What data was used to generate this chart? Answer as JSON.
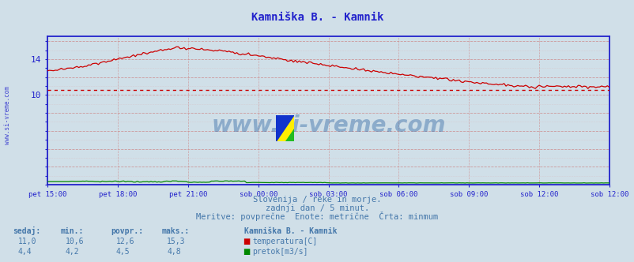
{
  "title": "Kamniška B. - Kamnik",
  "background_color": "#d0dfe8",
  "plot_bg_color": "#d0dfe8",
  "x_labels": [
    "pet 15:00",
    "pet 18:00",
    "pet 21:00",
    "sob 00:00",
    "sob 03:00",
    "sob 06:00",
    "sob 09:00",
    "sob 12:00"
  ],
  "y_ticks_show": [
    10,
    14
  ],
  "y_min": 0,
  "y_max": 16.5,
  "temp_min_line": 10.6,
  "subtitle1": "Slovenija / reke in morje.",
  "subtitle2": "zadnji dan / 5 minut.",
  "subtitle3": "Meritve: povprečne  Enote: metrične  Črta: minmum",
  "legend_title": "Kamniška B. - Kamnik",
  "legend_items": [
    "temperatura[C]",
    "pretok[m3/s]"
  ],
  "legend_colors": [
    "#cc0000",
    "#008800"
  ],
  "stats_headers": [
    "sedaj:",
    "min.:",
    "povpr.:",
    "maks.:"
  ],
  "stats_temp": [
    "11,0",
    "10,6",
    "12,6",
    "15,3"
  ],
  "stats_flow": [
    "4,4",
    "4,2",
    "4,5",
    "4,8"
  ],
  "grid_color_major": "#cc8888",
  "grid_color_minor": "#ddaaaa",
  "axis_color": "#2222cc",
  "temp_line_color": "#cc0000",
  "flow_line_color": "#008800",
  "min_line_color": "#cc0000",
  "watermark": "www.si-vreme.com",
  "watermark_color": "#3a6ea8",
  "left_label": "www.si-vreme.com"
}
